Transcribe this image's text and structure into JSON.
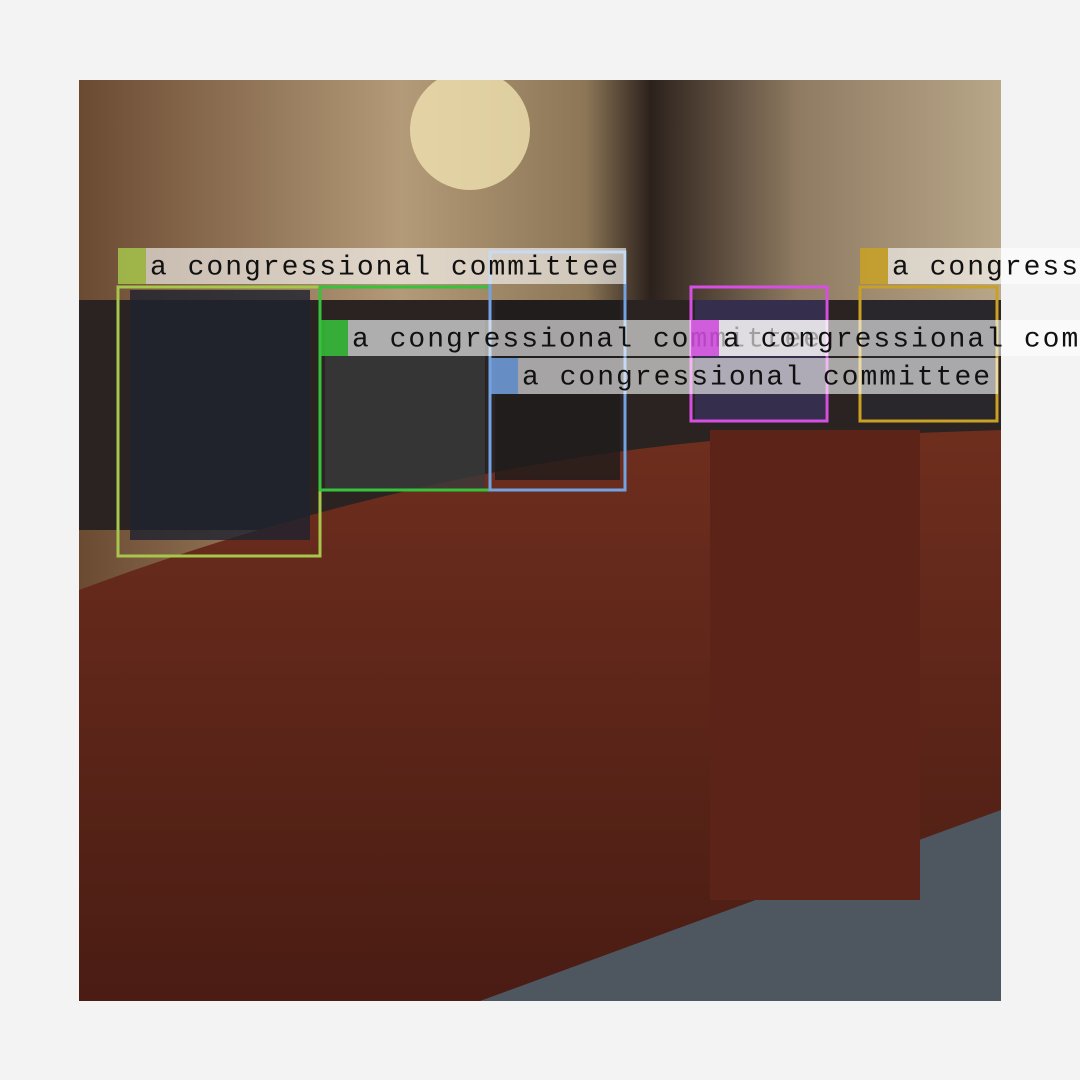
{
  "detections": [
    {
      "label": "a congressional committee",
      "color": "#a6c64c"
    },
    {
      "label": "a congressional committee",
      "color": "#36c23a"
    },
    {
      "label": "a congressional committee",
      "color": "#72a2e2"
    },
    {
      "label": "a congressional committee",
      "color": "#d64fe2"
    },
    {
      "label": "a congressional committee",
      "color": "#c9a124"
    }
  ]
}
